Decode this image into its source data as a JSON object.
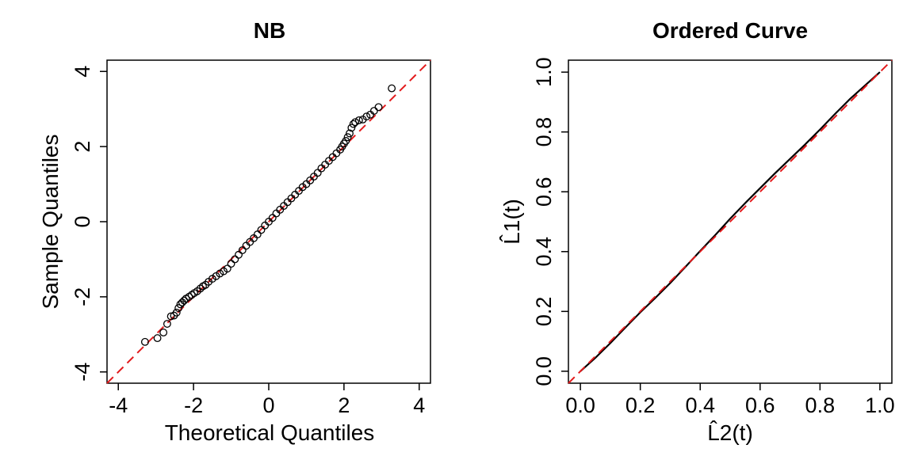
{
  "chart_data": [
    {
      "type": "scatter",
      "title": "NB",
      "xlabel": "Theoretical Quantiles",
      "ylabel": "Sample Quantiles",
      "xlim": [
        -4.3,
        4.3
      ],
      "ylim": [
        -4.3,
        4.3
      ],
      "xticks": [
        -4,
        -2,
        0,
        2,
        4
      ],
      "xtick_labels": [
        "-4",
        "-2",
        "0",
        "2",
        "4"
      ],
      "yticks": [
        -4,
        -2,
        0,
        2,
        4
      ],
      "ytick_labels": [
        "-4",
        "-2",
        "0",
        "2",
        "4"
      ],
      "reference_line": {
        "x": [
          -4.3,
          4.3
        ],
        "y": [
          -4.3,
          4.3
        ],
        "color": "#e31a1c",
        "style": "dashed"
      },
      "marker_color": "#000000",
      "points": [
        [
          -3.29,
          -3.2
        ],
        [
          -2.96,
          -3.1
        ],
        [
          -2.8,
          -2.95
        ],
        [
          -2.7,
          -2.72
        ],
        [
          -2.6,
          -2.52
        ],
        [
          -2.52,
          -2.5
        ],
        [
          -2.45,
          -2.42
        ],
        [
          -2.4,
          -2.3
        ],
        [
          -2.35,
          -2.2
        ],
        [
          -2.3,
          -2.15
        ],
        [
          -2.25,
          -2.1
        ],
        [
          -2.2,
          -2.05
        ],
        [
          -2.12,
          -2.0
        ],
        [
          -2.05,
          -1.95
        ],
        [
          -1.98,
          -1.9
        ],
        [
          -1.9,
          -1.85
        ],
        [
          -1.82,
          -1.78
        ],
        [
          -1.75,
          -1.72
        ],
        [
          -1.68,
          -1.68
        ],
        [
          -1.6,
          -1.6
        ],
        [
          -1.5,
          -1.52
        ],
        [
          -1.4,
          -1.45
        ],
        [
          -1.3,
          -1.38
        ],
        [
          -1.2,
          -1.32
        ],
        [
          -1.1,
          -1.25
        ],
        [
          -1.0,
          -1.12
        ],
        [
          -0.9,
          -1.0
        ],
        [
          -0.8,
          -0.88
        ],
        [
          -0.7,
          -0.76
        ],
        [
          -0.6,
          -0.64
        ],
        [
          -0.5,
          -0.54
        ],
        [
          -0.4,
          -0.44
        ],
        [
          -0.3,
          -0.34
        ],
        [
          -0.2,
          -0.22
        ],
        [
          -0.1,
          -0.1
        ],
        [
          0.0,
          0.0
        ],
        [
          0.1,
          0.1
        ],
        [
          0.2,
          0.22
        ],
        [
          0.3,
          0.32
        ],
        [
          0.4,
          0.42
        ],
        [
          0.5,
          0.52
        ],
        [
          0.6,
          0.62
        ],
        [
          0.7,
          0.72
        ],
        [
          0.8,
          0.82
        ],
        [
          0.9,
          0.92
        ],
        [
          1.0,
          1.0
        ],
        [
          1.1,
          1.1
        ],
        [
          1.2,
          1.2
        ],
        [
          1.3,
          1.3
        ],
        [
          1.4,
          1.42
        ],
        [
          1.5,
          1.52
        ],
        [
          1.6,
          1.62
        ],
        [
          1.7,
          1.72
        ],
        [
          1.8,
          1.82
        ],
        [
          1.9,
          1.92
        ],
        [
          1.95,
          2.0
        ],
        [
          2.0,
          2.08
        ],
        [
          2.05,
          2.15
        ],
        [
          2.1,
          2.25
        ],
        [
          2.15,
          2.35
        ],
        [
          2.2,
          2.5
        ],
        [
          2.25,
          2.6
        ],
        [
          2.3,
          2.65
        ],
        [
          2.4,
          2.7
        ],
        [
          2.5,
          2.72
        ],
        [
          2.6,
          2.8
        ],
        [
          2.7,
          2.85
        ],
        [
          2.8,
          2.95
        ],
        [
          2.92,
          3.05
        ],
        [
          3.27,
          3.55
        ]
      ]
    },
    {
      "type": "line",
      "title": "Ordered Curve",
      "xlabel": "L̂2(t)",
      "ylabel": "L̂1(t)",
      "xlim": [
        -0.04,
        1.04
      ],
      "ylim": [
        -0.04,
        1.04
      ],
      "xticks": [
        0.0,
        0.2,
        0.4,
        0.6,
        0.8,
        1.0
      ],
      "xtick_labels": [
        "0.0",
        "0.2",
        "0.4",
        "0.6",
        "0.8",
        "1.0"
      ],
      "yticks": [
        0.0,
        0.2,
        0.4,
        0.6,
        0.8,
        1.0
      ],
      "ytick_labels": [
        "0.0",
        "0.2",
        "0.4",
        "0.6",
        "0.8",
        "1.0"
      ],
      "reference_line": {
        "x": [
          -0.04,
          1.04
        ],
        "y": [
          -0.04,
          1.04
        ],
        "color": "#e31a1c",
        "style": "dashed"
      },
      "series": [
        {
          "color": "#000000",
          "x": [
            0.0,
            0.05,
            0.1,
            0.15,
            0.2,
            0.25,
            0.3,
            0.35,
            0.4,
            0.45,
            0.5,
            0.55,
            0.6,
            0.65,
            0.7,
            0.75,
            0.8,
            0.85,
            0.9,
            0.95,
            1.0
          ],
          "y": [
            0.0,
            0.045,
            0.094,
            0.146,
            0.197,
            0.245,
            0.295,
            0.348,
            0.402,
            0.455,
            0.51,
            0.562,
            0.612,
            0.662,
            0.71,
            0.758,
            0.808,
            0.86,
            0.91,
            0.955,
            1.0
          ]
        }
      ]
    }
  ]
}
